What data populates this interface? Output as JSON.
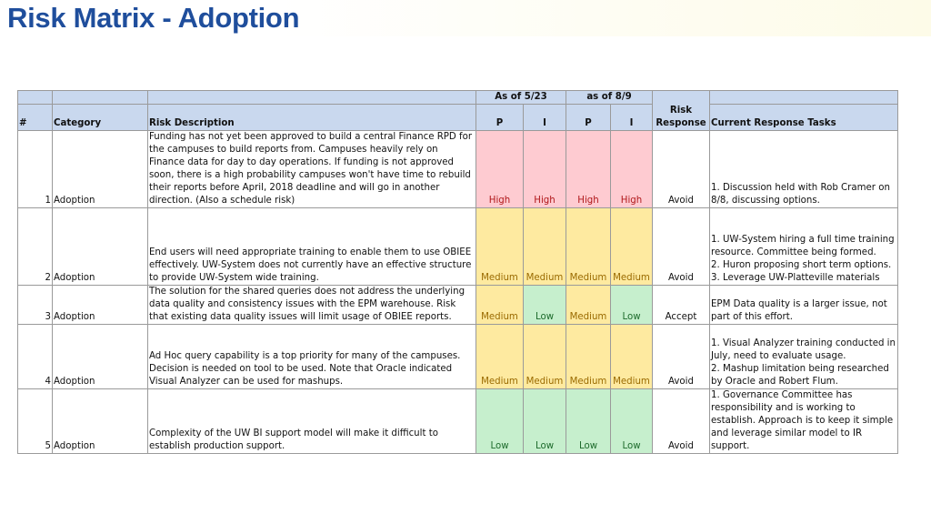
{
  "title": "Risk Matrix - Adoption",
  "header": {
    "group_1": "As of 5/23",
    "group_2": "as of 8/9",
    "risk_response_top": "Risk",
    "num": "#",
    "category": "Category",
    "risk_description": "Risk Description",
    "p1": "P",
    "i1": "I",
    "p2": "P",
    "i2": "I",
    "risk_response_bottom": "Response",
    "current_response_tasks": "Current Response Tasks"
  },
  "rows": [
    {
      "num": "1",
      "category": "Adoption",
      "description": "Funding has not yet been approved to build a central Finance RPD for the campuses to build reports from.   Campuses heavily rely on Finance data for day to day operations.  If funding is not approved soon, there is a high probability campuses won't have time to rebuild their reports before April, 2018 deadline and will go in another direction.   (Also a schedule risk)",
      "p1": "High",
      "i1": "High",
      "p2": "High",
      "i2": "High",
      "response": "Avoid",
      "tasks": "1.  Discussion held with Rob Cramer on 8/8, discussing options."
    },
    {
      "num": "2",
      "category": "Adoption",
      "description": "End users will need appropriate training to enable them to use OBIEE effectively.   UW-System does not currently have an effective structure to provide UW-System wide training.",
      "p1": "Medium",
      "i1": "Medium",
      "p2": "Medium",
      "i2": "Medium",
      "response": "Avoid",
      "tasks": "1.  UW-System hiring a full time training resource. Committee being formed.\n2.  Huron proposing short term options.\n3.  Leverage UW-Platteville materials"
    },
    {
      "num": "3",
      "category": "Adoption",
      "description": "The solution for the shared queries does not address the underlying data quality and consistency issues with the EPM warehouse.   Risk that existing data quality issues will limit usage of OBIEE reports.",
      "p1": "Medium",
      "i1": "Low",
      "p2": "Medium",
      "i2": "Low",
      "response": "Accept",
      "tasks": "EPM Data quality is a larger issue, not part of this effort."
    },
    {
      "num": "4",
      "category": "Adoption",
      "description": "Ad Hoc query capability is a top priority for many of the campuses. Decision is needed on tool to be used.  Note that Oracle indicated Visual Analyzer can be used for mashups.",
      "p1": "Medium",
      "i1": "Medium",
      "p2": "Medium",
      "i2": "Medium",
      "response": "Avoid",
      "tasks": "1.  Visual Analyzer training conducted in July, need to evaluate usage.\n2.  Mashup limitation being researched by Oracle and Robert Flum."
    },
    {
      "num": "5",
      "category": "Adoption",
      "description": "Complexity of the UW BI support model will make it difficult to establish production support.",
      "p1": "Low",
      "i1": "Low",
      "p2": "Low",
      "i2": "Low",
      "response": "Avoid",
      "tasks": "1.  Governance Committee has responsibility and is working to establish.  Approach is to keep it simple and leverage similar model to IR support."
    }
  ]
}
